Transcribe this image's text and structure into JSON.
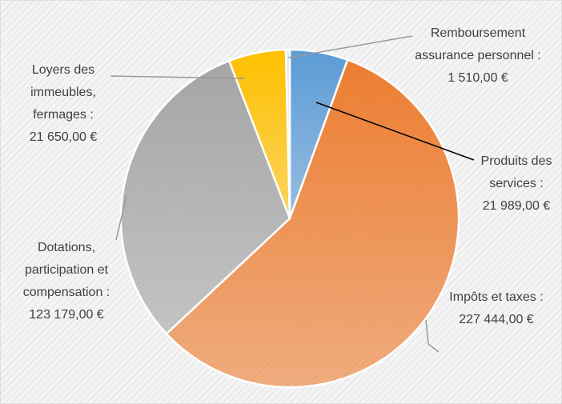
{
  "chart_data": {
    "type": "pie",
    "categories": [
      "Produits des services :",
      "Impôts et taxes :",
      "Dotations, participation et compensation :",
      "Loyers des immeubles, fermages :",
      "Remboursement assurance personnel :"
    ],
    "values": [
      21989,
      227444,
      123179,
      21650,
      1510
    ],
    "value_labels": [
      "21 989,00 €",
      "227 444,00 €",
      "123 179,00 €",
      "21 650,00 €",
      "1 510,00 €"
    ],
    "colors": [
      "#5b9bd5",
      "#ed7d31",
      "#a5a5a5",
      "#ffc000",
      "#deebf7"
    ]
  }
}
